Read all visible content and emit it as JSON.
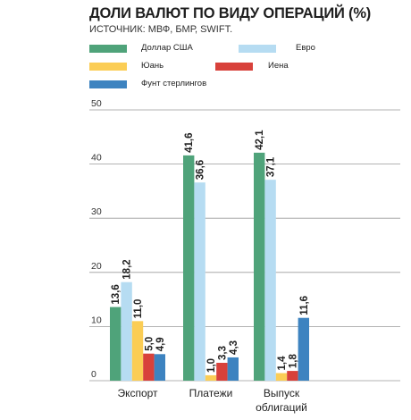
{
  "title": "ДОЛИ ВАЛЮТ ПО ВИДУ ОПЕРАЦИЙ (%)",
  "source": "ИСТОЧНИК: МВФ, БМР, SWIFT.",
  "legend": [
    {
      "name": "Доллар США",
      "color": "#4fa37a"
    },
    {
      "name": "Евро",
      "color": "#b6dcf2"
    },
    {
      "name": "Юань",
      "color": "#fbcd55"
    },
    {
      "name": "Иена",
      "color": "#d8413b"
    },
    {
      "name": "Фунт стерлингов",
      "color": "#3d83c0"
    }
  ],
  "chart_data": {
    "type": "bar",
    "title": "ДОЛИ ВАЛЮТ ПО ВИДУ ОПЕРАЦИЙ (%)",
    "xlabel": "",
    "ylabel": "",
    "ylim": [
      0,
      50
    ],
    "yticks": [
      "0",
      "10",
      "20",
      "30",
      "40",
      "50"
    ],
    "grid": true,
    "legend_position": "top",
    "categories": [
      [
        "Экспорт"
      ],
      [
        "Платежи"
      ],
      [
        "Выпуск",
        "облигаций"
      ]
    ],
    "series": [
      {
        "name": "Доллар США",
        "color": "#4fa37a",
        "values": [
          13.6,
          41.6,
          42.1
        ],
        "labels": [
          "13,6",
          "41,6",
          "42,1"
        ]
      },
      {
        "name": "Евро",
        "color": "#b6dcf2",
        "values": [
          18.2,
          36.6,
          37.1
        ],
        "labels": [
          "18,2",
          "36,6",
          "37,1"
        ]
      },
      {
        "name": "Юань",
        "color": "#fbcd55",
        "values": [
          11.0,
          1.0,
          1.4
        ],
        "labels": [
          "11,0",
          "1,0",
          "1,4"
        ]
      },
      {
        "name": "Иена",
        "color": "#d8413b",
        "values": [
          5.0,
          3.3,
          1.8
        ],
        "labels": [
          "5,0",
          "3,3",
          "1,8"
        ]
      },
      {
        "name": "Фунт стерлингов",
        "color": "#3d83c0",
        "values": [
          4.9,
          4.3,
          11.6
        ],
        "labels": [
          "4,9",
          "4,3",
          "11,6"
        ]
      }
    ]
  }
}
